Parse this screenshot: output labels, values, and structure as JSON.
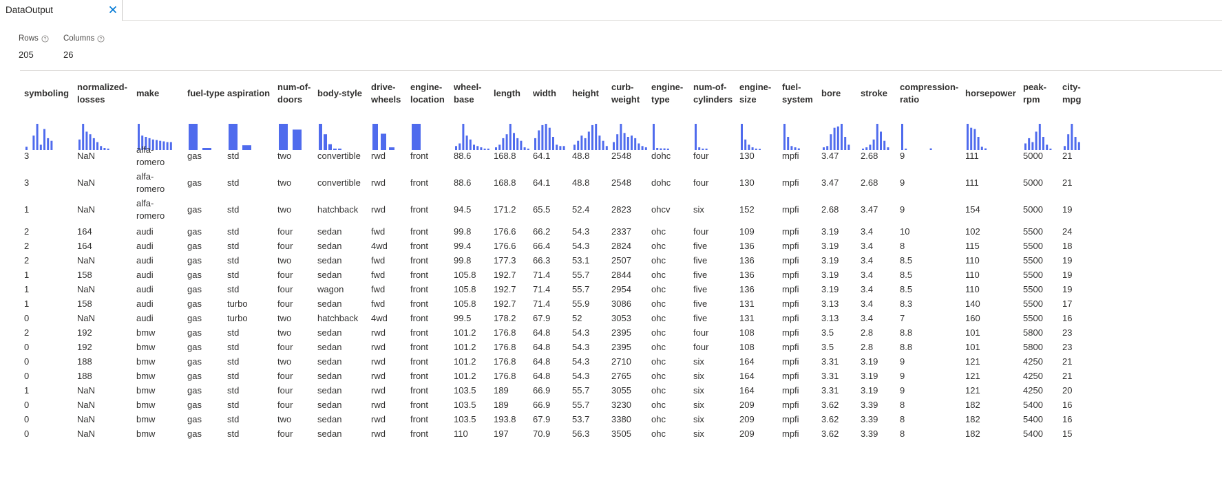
{
  "tab": {
    "label": "DataOutput",
    "close_icon": "close-icon"
  },
  "stats": {
    "rows_label": "Rows",
    "rows_value": "205",
    "columns_label": "Columns",
    "columns_value": "26",
    "help_icon": "help-circle-icon"
  },
  "accent_color": "#4f6bed",
  "table": {
    "columns": [
      "symboling",
      "normalized-losses",
      "make",
      "fuel-type",
      "aspiration",
      "num-of-doors",
      "body-style",
      "drive-wheels",
      "engine-location",
      "wheel-base",
      "length",
      "width",
      "height",
      "curb-weight",
      "engine-type",
      "num-of-cylinders",
      "engine-size",
      "fuel-system",
      "bore",
      "stroke",
      "compression-ratio",
      "horsepower",
      "peak-rpm",
      "city-mpg"
    ],
    "histograms": [
      [
        0.12,
        0.0,
        0.55,
        1.0,
        0.2,
        0.8,
        0.45,
        0.35
      ],
      [
        0.4,
        1.0,
        0.7,
        0.6,
        0.45,
        0.3,
        0.15,
        0.08,
        0.05
      ],
      [
        1.0,
        0.55,
        0.5,
        0.45,
        0.4,
        0.38,
        0.35,
        0.33,
        0.3,
        0.3
      ],
      [
        1.0,
        0.08
      ],
      [
        1.0,
        0.18
      ],
      [
        1.0,
        0.78
      ],
      [
        1.0,
        0.6,
        0.22,
        0.05,
        0.05
      ],
      [
        1.0,
        0.62,
        0.1
      ],
      [
        1.0
      ],
      [
        0.15,
        0.25,
        1.0,
        0.55,
        0.4,
        0.2,
        0.15,
        0.1,
        0.05,
        0.05
      ],
      [
        0.1,
        0.2,
        0.45,
        0.6,
        1.0,
        0.65,
        0.45,
        0.35,
        0.1,
        0.05
      ],
      [
        0.45,
        0.75,
        0.95,
        1.0,
        0.85,
        0.5,
        0.2,
        0.15,
        0.15
      ],
      [
        0.2,
        0.35,
        0.55,
        0.45,
        0.7,
        0.95,
        1.0,
        0.55,
        0.35,
        0.15
      ],
      [
        0.3,
        0.6,
        1.0,
        0.65,
        0.5,
        0.55,
        0.45,
        0.25,
        0.15,
        0.1
      ],
      [
        1.0,
        0.08,
        0.06,
        0.06,
        0.05
      ],
      [
        1.0,
        0.1,
        0.05,
        0.05
      ],
      [
        1.0,
        0.4,
        0.2,
        0.1,
        0.05,
        0.03
      ],
      [
        1.0,
        0.5,
        0.15,
        0.1,
        0.06
      ],
      [
        0.1,
        0.15,
        0.6,
        0.85,
        0.9,
        1.0,
        0.5,
        0.2
      ],
      [
        0.05,
        0.1,
        0.2,
        0.4,
        1.0,
        0.7,
        0.35,
        0.1
      ],
      [
        1.0,
        0.05,
        0.0,
        0.0,
        0.0,
        0.0,
        0.0,
        0.0,
        0.06
      ],
      [
        1.0,
        0.85,
        0.8,
        0.5,
        0.12,
        0.06
      ],
      [
        0.25,
        0.45,
        0.3,
        0.7,
        1.0,
        0.5,
        0.2,
        0.05
      ],
      [
        0.15,
        0.6,
        1.0,
        0.5,
        0.3
      ]
    ],
    "rows": [
      [
        "3",
        "NaN",
        "alfa-romero",
        "gas",
        "std",
        "two",
        "convertible",
        "rwd",
        "front",
        "88.6",
        "168.8",
        "64.1",
        "48.8",
        "2548",
        "dohc",
        "four",
        "130",
        "mpfi",
        "3.47",
        "2.68",
        "9",
        "111",
        "5000",
        "21"
      ],
      [
        "3",
        "NaN",
        "alfa-romero",
        "gas",
        "std",
        "two",
        "convertible",
        "rwd",
        "front",
        "88.6",
        "168.8",
        "64.1",
        "48.8",
        "2548",
        "dohc",
        "four",
        "130",
        "mpfi",
        "3.47",
        "2.68",
        "9",
        "111",
        "5000",
        "21"
      ],
      [
        "1",
        "NaN",
        "alfa-romero",
        "gas",
        "std",
        "two",
        "hatchback",
        "rwd",
        "front",
        "94.5",
        "171.2",
        "65.5",
        "52.4",
        "2823",
        "ohcv",
        "six",
        "152",
        "mpfi",
        "2.68",
        "3.47",
        "9",
        "154",
        "5000",
        "19"
      ],
      [
        "2",
        "164",
        "audi",
        "gas",
        "std",
        "four",
        "sedan",
        "fwd",
        "front",
        "99.8",
        "176.6",
        "66.2",
        "54.3",
        "2337",
        "ohc",
        "four",
        "109",
        "mpfi",
        "3.19",
        "3.4",
        "10",
        "102",
        "5500",
        "24"
      ],
      [
        "2",
        "164",
        "audi",
        "gas",
        "std",
        "four",
        "sedan",
        "4wd",
        "front",
        "99.4",
        "176.6",
        "66.4",
        "54.3",
        "2824",
        "ohc",
        "five",
        "136",
        "mpfi",
        "3.19",
        "3.4",
        "8",
        "115",
        "5500",
        "18"
      ],
      [
        "2",
        "NaN",
        "audi",
        "gas",
        "std",
        "two",
        "sedan",
        "fwd",
        "front",
        "99.8",
        "177.3",
        "66.3",
        "53.1",
        "2507",
        "ohc",
        "five",
        "136",
        "mpfi",
        "3.19",
        "3.4",
        "8.5",
        "110",
        "5500",
        "19"
      ],
      [
        "1",
        "158",
        "audi",
        "gas",
        "std",
        "four",
        "sedan",
        "fwd",
        "front",
        "105.8",
        "192.7",
        "71.4",
        "55.7",
        "2844",
        "ohc",
        "five",
        "136",
        "mpfi",
        "3.19",
        "3.4",
        "8.5",
        "110",
        "5500",
        "19"
      ],
      [
        "1",
        "NaN",
        "audi",
        "gas",
        "std",
        "four",
        "wagon",
        "fwd",
        "front",
        "105.8",
        "192.7",
        "71.4",
        "55.7",
        "2954",
        "ohc",
        "five",
        "136",
        "mpfi",
        "3.19",
        "3.4",
        "8.5",
        "110",
        "5500",
        "19"
      ],
      [
        "1",
        "158",
        "audi",
        "gas",
        "turbo",
        "four",
        "sedan",
        "fwd",
        "front",
        "105.8",
        "192.7",
        "71.4",
        "55.9",
        "3086",
        "ohc",
        "five",
        "131",
        "mpfi",
        "3.13",
        "3.4",
        "8.3",
        "140",
        "5500",
        "17"
      ],
      [
        "0",
        "NaN",
        "audi",
        "gas",
        "turbo",
        "two",
        "hatchback",
        "4wd",
        "front",
        "99.5",
        "178.2",
        "67.9",
        "52",
        "3053",
        "ohc",
        "five",
        "131",
        "mpfi",
        "3.13",
        "3.4",
        "7",
        "160",
        "5500",
        "16"
      ],
      [
        "2",
        "192",
        "bmw",
        "gas",
        "std",
        "two",
        "sedan",
        "rwd",
        "front",
        "101.2",
        "176.8",
        "64.8",
        "54.3",
        "2395",
        "ohc",
        "four",
        "108",
        "mpfi",
        "3.5",
        "2.8",
        "8.8",
        "101",
        "5800",
        "23"
      ],
      [
        "0",
        "192",
        "bmw",
        "gas",
        "std",
        "four",
        "sedan",
        "rwd",
        "front",
        "101.2",
        "176.8",
        "64.8",
        "54.3",
        "2395",
        "ohc",
        "four",
        "108",
        "mpfi",
        "3.5",
        "2.8",
        "8.8",
        "101",
        "5800",
        "23"
      ],
      [
        "0",
        "188",
        "bmw",
        "gas",
        "std",
        "two",
        "sedan",
        "rwd",
        "front",
        "101.2",
        "176.8",
        "64.8",
        "54.3",
        "2710",
        "ohc",
        "six",
        "164",
        "mpfi",
        "3.31",
        "3.19",
        "9",
        "121",
        "4250",
        "21"
      ],
      [
        "0",
        "188",
        "bmw",
        "gas",
        "std",
        "four",
        "sedan",
        "rwd",
        "front",
        "101.2",
        "176.8",
        "64.8",
        "54.3",
        "2765",
        "ohc",
        "six",
        "164",
        "mpfi",
        "3.31",
        "3.19",
        "9",
        "121",
        "4250",
        "21"
      ],
      [
        "1",
        "NaN",
        "bmw",
        "gas",
        "std",
        "four",
        "sedan",
        "rwd",
        "front",
        "103.5",
        "189",
        "66.9",
        "55.7",
        "3055",
        "ohc",
        "six",
        "164",
        "mpfi",
        "3.31",
        "3.19",
        "9",
        "121",
        "4250",
        "20"
      ],
      [
        "0",
        "NaN",
        "bmw",
        "gas",
        "std",
        "four",
        "sedan",
        "rwd",
        "front",
        "103.5",
        "189",
        "66.9",
        "55.7",
        "3230",
        "ohc",
        "six",
        "209",
        "mpfi",
        "3.62",
        "3.39",
        "8",
        "182",
        "5400",
        "16"
      ],
      [
        "0",
        "NaN",
        "bmw",
        "gas",
        "std",
        "two",
        "sedan",
        "rwd",
        "front",
        "103.5",
        "193.8",
        "67.9",
        "53.7",
        "3380",
        "ohc",
        "six",
        "209",
        "mpfi",
        "3.62",
        "3.39",
        "8",
        "182",
        "5400",
        "16"
      ],
      [
        "0",
        "NaN",
        "bmw",
        "gas",
        "std",
        "four",
        "sedan",
        "rwd",
        "front",
        "110",
        "197",
        "70.9",
        "56.3",
        "3505",
        "ohc",
        "six",
        "209",
        "mpfi",
        "3.62",
        "3.39",
        "8",
        "182",
        "5400",
        "15"
      ]
    ]
  }
}
